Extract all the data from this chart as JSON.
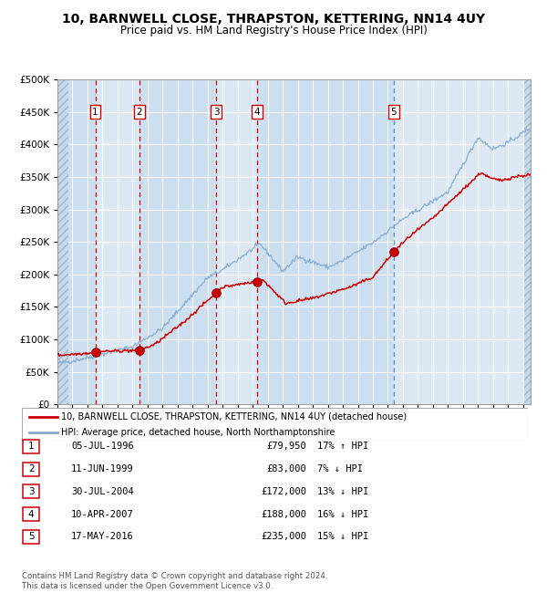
{
  "title": "10, BARNWELL CLOSE, THRAPSTON, KETTERING, NN14 4UY",
  "subtitle": "Price paid vs. HM Land Registry's House Price Index (HPI)",
  "title_fontsize": 10,
  "subtitle_fontsize": 8.5,
  "bg_color": "#ffffff",
  "plot_bg_color": "#dce9f5",
  "grid_color": "#ffffff",
  "red_line_color": "#cc0000",
  "blue_line_color": "#88aacc",
  "vline_red_color": "#cc0000",
  "vline_blue_color": "#6688aa",
  "sale_marker_color": "#cc0000",
  "sale_points": [
    {
      "year": 1996.52,
      "value": 79950,
      "label": "1",
      "vline_style": "red"
    },
    {
      "year": 1999.44,
      "value": 83000,
      "label": "2",
      "vline_style": "red"
    },
    {
      "year": 2004.58,
      "value": 172000,
      "label": "3",
      "vline_style": "red"
    },
    {
      "year": 2007.27,
      "value": 188000,
      "label": "4",
      "vline_style": "red"
    },
    {
      "year": 2016.38,
      "value": 235000,
      "label": "5",
      "vline_style": "blue"
    }
  ],
  "table_rows": [
    {
      "num": "1",
      "date": "05-JUL-1996",
      "price": "£79,950",
      "hpi": "17% ↑ HPI"
    },
    {
      "num": "2",
      "date": "11-JUN-1999",
      "price": "£83,000",
      "hpi": "7% ↓ HPI"
    },
    {
      "num": "3",
      "date": "30-JUL-2004",
      "price": "£172,000",
      "hpi": "13% ↓ HPI"
    },
    {
      "num": "4",
      "date": "10-APR-2007",
      "price": "£188,000",
      "hpi": "16% ↓ HPI"
    },
    {
      "num": "5",
      "date": "17-MAY-2016",
      "price": "£235,000",
      "hpi": "15% ↓ HPI"
    }
  ],
  "legend_red": "10, BARNWELL CLOSE, THRAPSTON, KETTERING, NN14 4UY (detached house)",
  "legend_blue": "HPI: Average price, detached house, North Northamptonshire",
  "footnote": "Contains HM Land Registry data © Crown copyright and database right 2024.\nThis data is licensed under the Open Government Licence v3.0.",
  "xmin": 1994,
  "xmax": 2025.5,
  "ymin": 0,
  "ymax": 500000,
  "yticks": [
    0,
    50000,
    100000,
    150000,
    200000,
    250000,
    300000,
    350000,
    400000,
    450000,
    500000
  ]
}
